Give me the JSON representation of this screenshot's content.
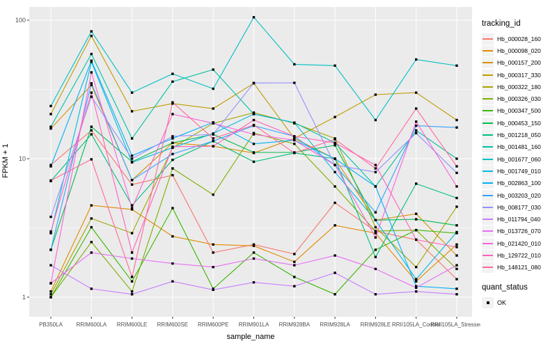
{
  "chart_data": {
    "type": "line",
    "title": "",
    "xlabel": "sample_name",
    "ylabel": "FPKM + 1",
    "y_scale": "log10",
    "y_ticks": [
      1,
      10,
      100
    ],
    "y_minor_ticks": [
      3.1623,
      31.623
    ],
    "ylim_log": [
      0.72,
      124
    ],
    "grid": "on",
    "point_marker": "black-square",
    "categories": [
      "PB350LA",
      "RRIM600LA",
      "RRIM600LE",
      "RRIM600SE",
      "RRIM600PE",
      "RRIM901LA",
      "RRIM928BA",
      "RRIM928LA",
      "RRIM928LE",
      "RRII105LA_Control",
      "RRII105LA_Stressed"
    ],
    "legend": {
      "series_title": "tracking_id",
      "quant_title": "quant_status",
      "quant_label": "OK"
    },
    "style": {
      "panel_bg": "#EBEBEB",
      "grid_color": "#FFFFFF",
      "tick_text_color": "#4D4D4D",
      "axis_title_color": "#000000",
      "point_color": "#000000"
    },
    "series": [
      {
        "name": "Hb_000028_160",
        "color": "#F8766D",
        "values": [
          9.0,
          16,
          6.5,
          7.6,
          2.1,
          2.4,
          2.05,
          4.8,
          3.0,
          2.6,
          1.35
        ]
      },
      {
        "name": "Hb_000098_020",
        "color": "#E38900",
        "values": [
          1.1,
          4.6,
          4.3,
          2.75,
          2.4,
          2.35,
          1.8,
          3.3,
          2.9,
          1.3,
          2.4
        ]
      },
      {
        "name": "Hb_000157_200",
        "color": "#D89000",
        "values": [
          16.5,
          34,
          7.0,
          13,
          12.3,
          11,
          14,
          10,
          3.6,
          4.0,
          2.0
        ]
      },
      {
        "name": "Hb_000317_330",
        "color": "#C09B00",
        "values": [
          21,
          77,
          22,
          25,
          23,
          35,
          14,
          20,
          29,
          30,
          19
        ]
      },
      {
        "name": "Hb_000322_180",
        "color": "#A3A500",
        "values": [
          1.05,
          3.7,
          2.9,
          12,
          18,
          21.5,
          18,
          14,
          3.2,
          1.65,
          4.5
        ]
      },
      {
        "name": "Hb_000326_030",
        "color": "#7CAE00",
        "values": [
          1.0,
          2.5,
          1.1,
          8.5,
          5.5,
          15.3,
          12.8,
          6.3,
          3.0,
          3.05,
          1.6
        ]
      },
      {
        "name": "Hb_000347_500",
        "color": "#39B600",
        "values": [
          1.0,
          3.2,
          1.3,
          4.4,
          1.15,
          2.1,
          1.4,
          1.05,
          2.2,
          3.05,
          2.9
        ]
      },
      {
        "name": "Hb_000453_150",
        "color": "#00BB4E",
        "values": [
          2.2,
          17,
          9.5,
          13,
          15,
          11.1,
          11.1,
          12.5,
          3.6,
          3.65,
          3.3
        ]
      },
      {
        "name": "Hb_001218_050",
        "color": "#00BF7D",
        "values": [
          6.9,
          15,
          4.6,
          9.8,
          13.4,
          9.5,
          11,
          10,
          1.95,
          6.6,
          5.2
        ]
      },
      {
        "name": "Hb_001481_160",
        "color": "#00C1A3",
        "values": [
          17,
          57,
          14,
          36,
          44,
          21,
          18.2,
          13,
          6.3,
          16,
          10
        ]
      },
      {
        "name": "Hb_001677_060",
        "color": "#00BFC4",
        "values": [
          24,
          83,
          30,
          41,
          32,
          105,
          48,
          47,
          19,
          52,
          47
        ]
      },
      {
        "name": "Hb_001749_010",
        "color": "#00BAE0",
        "values": [
          2.9,
          50,
          9.4,
          12,
          15.2,
          21,
          18.2,
          8.0,
          3.6,
          1.35,
          2.95
        ]
      },
      {
        "name": "Hb_002863_100",
        "color": "#00B0F6",
        "values": [
          8.8,
          51,
          10.5,
          14,
          18.3,
          12.8,
          13.6,
          10,
          6.3,
          1.2,
          1.15
        ]
      },
      {
        "name": "Hb_003203_020",
        "color": "#35A2FF",
        "values": [
          2.2,
          35,
          7.0,
          10.8,
          13.4,
          17.3,
          14.5,
          9.0,
          4.1,
          17.3,
          16.8
        ]
      },
      {
        "name": "Hb_008177_030",
        "color": "#9590FF",
        "values": [
          3.8,
          28,
          10,
          14.5,
          15,
          35.2,
          35.3,
          9.0,
          8.0,
          15.3,
          7.9
        ]
      },
      {
        "name": "Hb_011794_040",
        "color": "#C77CFF",
        "values": [
          1.7,
          1.15,
          1.05,
          1.3,
          1.13,
          1.28,
          1.2,
          1.5,
          1.05,
          1.1,
          1.05
        ]
      },
      {
        "name": "Hb_013726_070",
        "color": "#E76BF3",
        "values": [
          1.26,
          2.1,
          1.9,
          1.75,
          1.65,
          1.9,
          1.7,
          2.0,
          1.6,
          1.17,
          1.7
        ]
      },
      {
        "name": "Hb_021420_010",
        "color": "#FA62DB",
        "values": [
          1.26,
          42,
          4.4,
          21,
          18,
          15,
          13.6,
          9.0,
          2.7,
          18.5,
          6.3
        ]
      },
      {
        "name": "Hb_129722_010",
        "color": "#FF62BC",
        "values": [
          2.98,
          30,
          2.1,
          12.2,
          12.3,
          19,
          14.5,
          13,
          9.0,
          2.6,
          2.3
        ]
      },
      {
        "name": "Hb_148121_080",
        "color": "#FF6A98",
        "values": [
          6.95,
          9.9,
          1.4,
          25.5,
          14,
          17.5,
          11,
          13.8,
          8.5,
          23,
          8.8
        ]
      }
    ]
  }
}
